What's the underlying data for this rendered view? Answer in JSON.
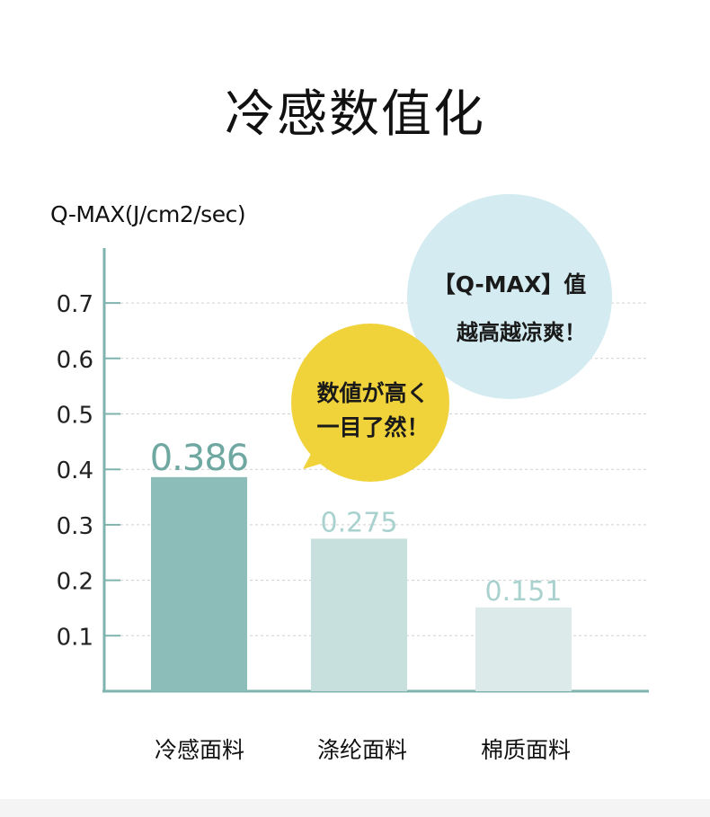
{
  "page": {
    "title": "冷感数值化"
  },
  "bubbles": {
    "blue_line1": "【Q-MAX】值",
    "blue_line2": "越高越凉爽！",
    "yellow_line1": "数値が高く",
    "yellow_line2": "一目了然！"
  },
  "colors": {
    "bar1": "#8dbdb8",
    "bar2": "#c7e0dd",
    "bar3": "#dcebe9",
    "label1": "#6fa7a1",
    "label2": "#a9d2cf",
    "label3": "#a9d2cf",
    "axis": "#7fb3ad",
    "bubble_blue": "#d4ecf1",
    "bubble_yellow": "#f0d23a"
  },
  "chart_data": {
    "type": "bar",
    "ylabel": "Q-MAX(J/cm2/sec)",
    "categories": [
      "冷感面料",
      "涤纶面料",
      "棉质面料"
    ],
    "values": [
      0.386,
      0.275,
      0.151
    ],
    "value_labels": [
      "0.386",
      "0.275",
      "0.151"
    ],
    "yticks": [
      "0.1",
      "0.2",
      "0.3",
      "0.4",
      "0.5",
      "0.6",
      "0.7"
    ],
    "ylim": [
      0,
      0.7
    ],
    "grid": true
  }
}
